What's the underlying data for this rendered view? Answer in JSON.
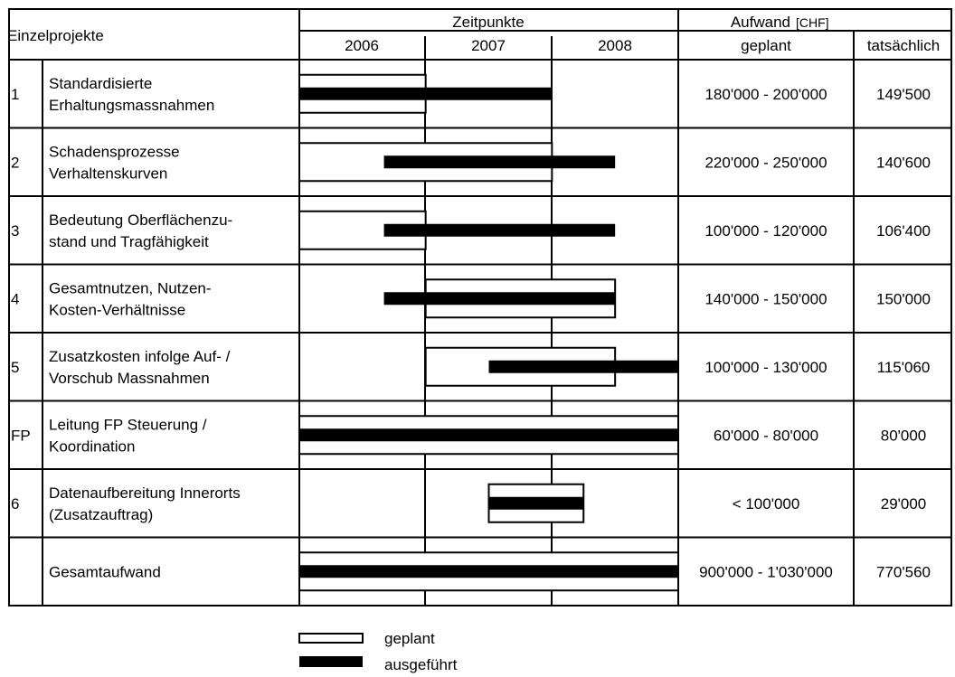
{
  "chart_data": {
    "type": "table",
    "header": {
      "projects": "Einzelprojekte",
      "timepoints": "Zeitpunkte",
      "years": [
        "2006",
        "2007",
        "2008"
      ],
      "cost_title": "Aufwand",
      "cost_unit": "[CHF]",
      "cost_planned": "geplant",
      "cost_actual": "tatsächlich"
    },
    "year_range": [
      2006.0,
      2009.0
    ],
    "rows": [
      {
        "id": "1",
        "name_lines": [
          "Standardisierte",
          "Erhaltungsmassnahmen"
        ],
        "planned": [
          2006.0,
          2007.0
        ],
        "actual": [
          2006.0,
          2008.0
        ],
        "cost_planned": "180'000 - 200'000",
        "cost_actual": "149'500"
      },
      {
        "id": "2",
        "name_lines": [
          "Schadensprozesse",
          "Verhaltenskurven"
        ],
        "planned": [
          2006.0,
          2008.0
        ],
        "actual": [
          2006.67,
          2008.5
        ],
        "cost_planned": "220'000 - 250'000",
        "cost_actual": "140'600"
      },
      {
        "id": "3",
        "name_lines": [
          "Bedeutung Oberflächenzu-",
          "stand und Tragfähigkeit"
        ],
        "planned": [
          2006.0,
          2007.0
        ],
        "actual": [
          2006.67,
          2008.5
        ],
        "cost_planned": "100'000 - 120'000",
        "cost_actual": "106'400"
      },
      {
        "id": "4",
        "name_lines": [
          "Gesamtnutzen, Nutzen-",
          "Kosten-Verhältnisse"
        ],
        "planned": [
          2007.0,
          2008.5
        ],
        "actual": [
          2006.67,
          2008.5
        ],
        "cost_planned": "140'000 - 150'000",
        "cost_actual": "150'000"
      },
      {
        "id": "5",
        "name_lines": [
          "Zusatzkosten infolge Auf- /",
          "Vorschub Massnahmen"
        ],
        "planned": [
          2007.0,
          2008.5
        ],
        "actual": [
          2007.5,
          2009.0
        ],
        "cost_planned": "100'000 - 130'000",
        "cost_actual": "115'060"
      },
      {
        "id": "FP",
        "name_lines": [
          "Leitung FP Steuerung /",
          "Koordination"
        ],
        "planned": [
          2006.0,
          2009.0
        ],
        "actual": [
          2006.0,
          2009.0
        ],
        "cost_planned": "60'000 - 80'000",
        "cost_actual": "80'000"
      },
      {
        "id": "6",
        "name_lines": [
          "Datenaufbereitung Innerorts",
          "(Zusatzauftrag)"
        ],
        "planned": [
          2007.5,
          2008.25
        ],
        "actual": [
          2007.5,
          2008.25
        ],
        "cost_planned": "< 100'000",
        "cost_actual": "29'000"
      },
      {
        "id": "",
        "name_lines": [
          "Gesamtaufwand"
        ],
        "planned": [
          2006.0,
          2009.0
        ],
        "actual": [
          2006.0,
          2009.0
        ],
        "cost_planned": "900'000 - 1'030'000",
        "cost_actual": "770'560"
      }
    ],
    "legend": {
      "planned": "geplant",
      "actual": "ausgeführt"
    }
  }
}
